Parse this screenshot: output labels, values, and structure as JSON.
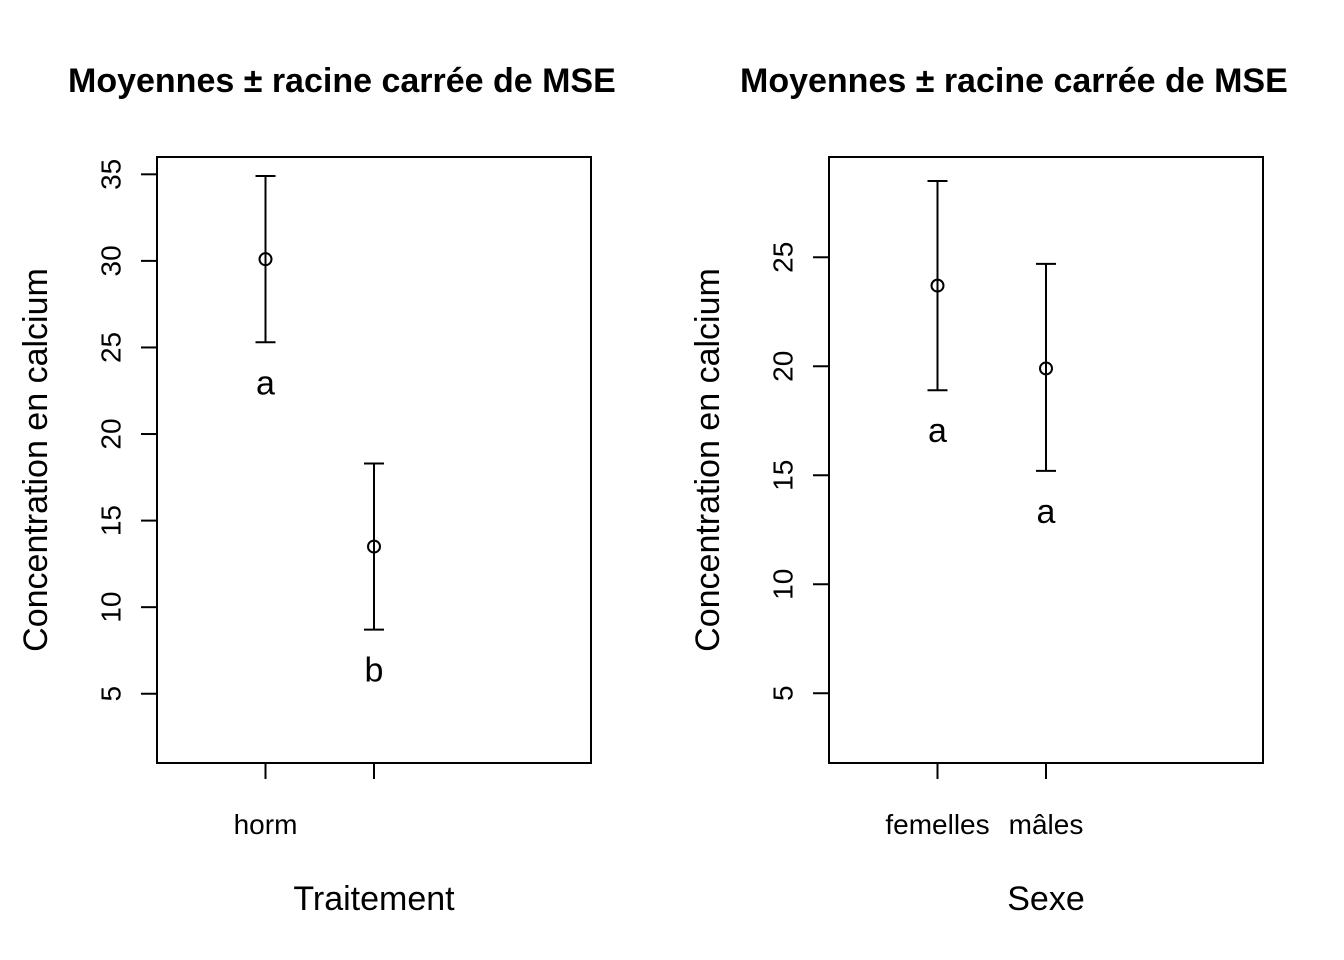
{
  "chart_data": [
    {
      "type": "scatter",
      "title": "Moyennes ± racine carrée de MSE",
      "xlabel": "Traitement",
      "ylabel": "Concentration en calcium",
      "ylim": [
        1,
        36
      ],
      "yticks": [
        5,
        10,
        15,
        20,
        25,
        30,
        35
      ],
      "categories": [
        "horm",
        ""
      ],
      "means": [
        30.1,
        13.5
      ],
      "lower": [
        25.3,
        8.7
      ],
      "upper": [
        34.9,
        18.3
      ],
      "letters": [
        "a",
        "b"
      ],
      "grid": false
    },
    {
      "type": "scatter",
      "title": "Moyennes ± racine carrée de MSE",
      "xlabel": "Sexe",
      "ylabel": "Concentration en calcium",
      "ylim": [
        1.8,
        29.6
      ],
      "yticks": [
        5,
        10,
        15,
        20,
        25
      ],
      "categories": [
        "femelles",
        "mâles"
      ],
      "means": [
        23.7,
        19.9
      ],
      "lower": [
        18.9,
        15.2
      ],
      "upper": [
        28.5,
        24.7
      ],
      "letters": [
        "a",
        "a"
      ],
      "grid": false
    }
  ]
}
